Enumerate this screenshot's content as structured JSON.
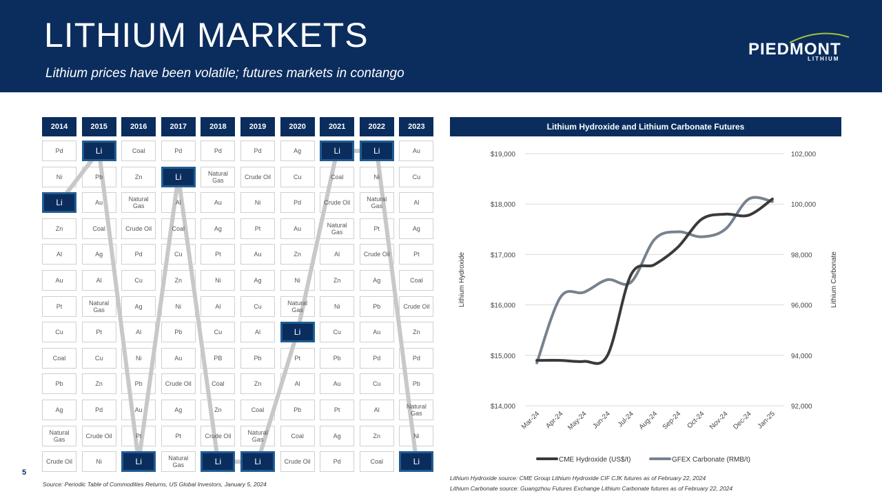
{
  "header": {
    "title": "LITHIUM MARKETS",
    "subtitle": "Lithium prices have been volatile; futures markets in contango",
    "logo_word": "PIEDMONT",
    "logo_sub": "LITHIUM"
  },
  "page_number": "5",
  "commodity_table": {
    "years": [
      "2014",
      "2015",
      "2016",
      "2017",
      "2018",
      "2019",
      "2020",
      "2021",
      "2022",
      "2023"
    ],
    "columns": [
      [
        "Pd",
        "Ni",
        "Li",
        "Zn",
        "Al",
        "Au",
        "Pt",
        "Cu",
        "Coal",
        "Pb",
        "Ag",
        "Natural Gas",
        "Crude Oil"
      ],
      [
        "Li",
        "Pb",
        "Au",
        "Coal",
        "Ag",
        "Al",
        "Natural Gas",
        "Pt",
        "Cu",
        "Zn",
        "Pd",
        "Crude Oil",
        "Ni"
      ],
      [
        "Coal",
        "Zn",
        "Natural Gas",
        "Crude Oil",
        "Pd",
        "Cu",
        "Ag",
        "Al",
        "Ni",
        "Pb",
        "Au",
        "Pt",
        "Li"
      ],
      [
        "Pd",
        "Li",
        "Al",
        "Coal",
        "Cu",
        "Zn",
        "Ni",
        "Pb",
        "Au",
        "Crude Oil",
        "Ag",
        "Pt",
        "Natural Gas"
      ],
      [
        "Pd",
        "Natural Gas",
        "Au",
        "Ag",
        "Pt",
        "Ni",
        "Al",
        "Cu",
        "PB",
        "Coal",
        "Zn",
        "Crude Oil",
        "Li"
      ],
      [
        "Pd",
        "Crude Oil",
        "Ni",
        "Pt",
        "Au",
        "Ag",
        "Cu",
        "Al",
        "Pb",
        "Zn",
        "Coal",
        "Natural Gas",
        "Li"
      ],
      [
        "Ag",
        "Cu",
        "Pd",
        "Au",
        "Zn",
        "Ni",
        "Natural Gas",
        "Li",
        "Pt",
        "Al",
        "Pb",
        "Coal",
        "Crude Oil"
      ],
      [
        "Li",
        "Coal",
        "Crude Oil",
        "Natural Gas",
        "Al",
        "Zn",
        "Ni",
        "Cu",
        "Pb",
        "Au",
        "Pt",
        "Ag",
        "Pd"
      ],
      [
        "Li",
        "Ni",
        "Natural Gas",
        "Pt",
        "Crude Oil",
        "Ag",
        "Pb",
        "Au",
        "Pd",
        "Cu",
        "Al",
        "Zn",
        "Coal"
      ],
      [
        "Au",
        "Cu",
        "Al",
        "Ag",
        "Pt",
        "Coal",
        "Crude Oil",
        "Zn",
        "Pd",
        "Pb",
        "Natural Gas",
        "Ni",
        "Li"
      ]
    ],
    "source": "Source: Periodic Table of Commodities Returns, US Global Investors, January 5, 2024"
  },
  "chart_data": {
    "type": "line",
    "title": "Lithium Hydroxide and Lithium Carbonate Futures",
    "x": [
      "Mar-24",
      "Apr-24",
      "May-24",
      "Jun-24",
      "Jul-24",
      "Aug-24",
      "Sep-24",
      "Oct-24",
      "Nov-24",
      "Dec-24",
      "Jan-25"
    ],
    "ylabel_left": "Lithium Hydroxide",
    "ylabel_right": "Lithium Carbonate",
    "ylim_left": [
      14000,
      19000
    ],
    "ylim_right": [
      92000,
      102000
    ],
    "yticks_left": [
      "$14,000",
      "$15,000",
      "$16,000",
      "$17,000",
      "$18,000",
      "$19,000"
    ],
    "yticks_right": [
      "92,000",
      "94,000",
      "96,000",
      "98,000",
      "100,000",
      "102,000"
    ],
    "grid": true,
    "legend_position": "bottom",
    "series": [
      {
        "name": "CME Hydroxide (US$/t)",
        "axis": "left",
        "color": "#3a3a3a",
        "values": [
          14900,
          14900,
          14880,
          15000,
          16600,
          16800,
          17150,
          17700,
          17800,
          17780,
          18100
        ]
      },
      {
        "name": "GFEX Carbonate (RMB/t)",
        "axis": "right",
        "color": "#76828f",
        "values": [
          93700,
          96300,
          96500,
          97000,
          96900,
          98600,
          98900,
          98700,
          99000,
          100200,
          100100
        ]
      }
    ]
  },
  "chart_sources": [
    "Lithium Hydroxide source: CME Group Lithium Hydroxide CIF CJK futures as of February 22, 2024",
    "Lithium Carbonate source: Guangzhou Futures Exchange Lithium Carbonate futures as of February 22, 2024"
  ]
}
